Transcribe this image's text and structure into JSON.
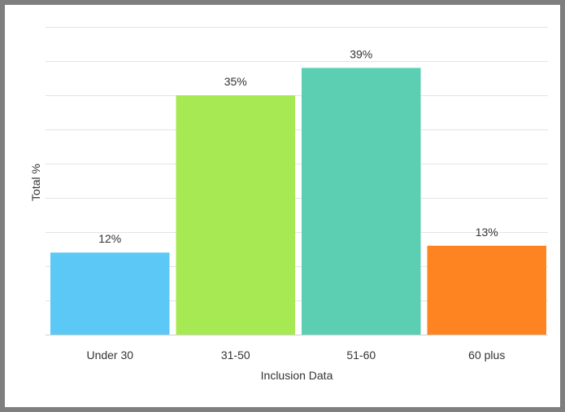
{
  "chart_data": {
    "type": "bar",
    "categories": [
      "Under 30",
      "31-50",
      "51-60",
      "60 plus"
    ],
    "values": [
      12,
      35,
      39,
      13
    ],
    "data_labels": [
      "12%",
      "35%",
      "39%",
      "13%"
    ],
    "colors": [
      "#5bc8f5",
      "#a7e952",
      "#5ccfb2",
      "#fd8420"
    ],
    "xlabel": "Inclusion Data",
    "ylabel": "Total %",
    "ylim": [
      0,
      45
    ],
    "grid_step": 5,
    "grid": true,
    "legend": "none"
  }
}
